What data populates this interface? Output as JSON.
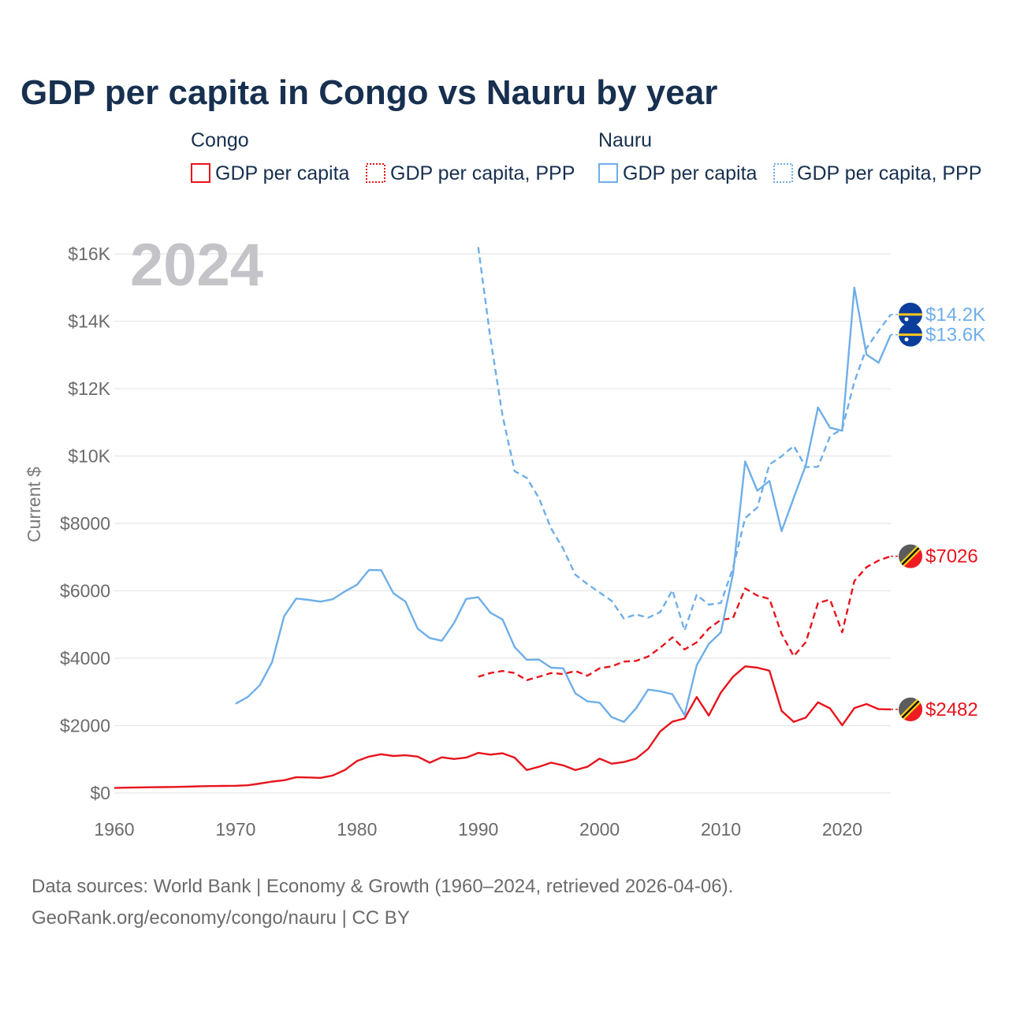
{
  "title": "GDP per capita in Congo vs Nauru by year",
  "year_label": "2024",
  "legend": {
    "congo": {
      "group": "Congo",
      "gdp": "GDP per capita",
      "ppp": "GDP per capita, PPP"
    },
    "nauru": {
      "group": "Nauru",
      "gdp": "GDP per capita",
      "ppp": "GDP per capita, PPP"
    }
  },
  "colors": {
    "congo": "#e8141c",
    "nauru": "#6eaee9",
    "grid": "#e6e6e6",
    "title": "#17304f"
  },
  "source": {
    "line1": "Data sources: World Bank | Economy & Growth (1960–2024, retrieved 2026-04-06).",
    "line2": "GeoRank.org/economy/congo/nauru | CC BY"
  },
  "chart_data": {
    "type": "line",
    "ylabel": "Current $",
    "xlim": [
      1960,
      2024
    ],
    "ylim": [
      0,
      16000
    ],
    "x_ticks": [
      1960,
      1970,
      1980,
      1990,
      2000,
      2010,
      2020
    ],
    "x_tick_labels": [
      "1960",
      "1970",
      "1980",
      "1990",
      "2000",
      "2010",
      "2020"
    ],
    "y_ticks": [
      0,
      2000,
      4000,
      6000,
      8000,
      10000,
      12000,
      14000,
      16000
    ],
    "y_tick_labels": [
      "$0",
      "$2000",
      "$4000",
      "$6000",
      "$8000",
      "$10K",
      "$12K",
      "$14K",
      "$16K"
    ],
    "series": [
      {
        "name": "Congo GDP per capita",
        "country": "congo",
        "dash": false,
        "end_label": "$2482",
        "x": [
          1960,
          1961,
          1962,
          1963,
          1964,
          1965,
          1966,
          1967,
          1968,
          1969,
          1970,
          1971,
          1972,
          1973,
          1974,
          1975,
          1976,
          1977,
          1978,
          1979,
          1980,
          1981,
          1982,
          1983,
          1984,
          1985,
          1986,
          1987,
          1988,
          1989,
          1990,
          1991,
          1992,
          1993,
          1994,
          1995,
          1996,
          1997,
          1998,
          1999,
          2000,
          2001,
          2002,
          2003,
          2004,
          2005,
          2006,
          2007,
          2008,
          2009,
          2010,
          2011,
          2012,
          2013,
          2014,
          2015,
          2016,
          2017,
          2018,
          2019,
          2020,
          2021,
          2022,
          2023,
          2024
        ],
        "y": [
          150,
          160,
          165,
          170,
          175,
          180,
          190,
          200,
          205,
          210,
          215,
          230,
          280,
          340,
          380,
          470,
          460,
          450,
          520,
          680,
          950,
          1080,
          1150,
          1100,
          1120,
          1080,
          900,
          1060,
          1010,
          1050,
          1190,
          1140,
          1180,
          1050,
          680,
          780,
          900,
          820,
          680,
          780,
          1020,
          870,
          920,
          1020,
          1310,
          1830,
          2120,
          2210,
          2850,
          2300,
          2980,
          3450,
          3760,
          3720,
          3630,
          2440,
          2110,
          2240,
          2690,
          2510,
          2010,
          2520,
          2640,
          2490,
          2482
        ]
      },
      {
        "name": "Congo GDP per capita, PPP",
        "country": "congo",
        "dash": true,
        "end_label": "$7026",
        "x": [
          1990,
          1991,
          1992,
          1993,
          1994,
          1995,
          1996,
          1997,
          1998,
          1999,
          2000,
          2001,
          2002,
          2003,
          2004,
          2005,
          2006,
          2007,
          2008,
          2009,
          2010,
          2011,
          2012,
          2013,
          2014,
          2015,
          2016,
          2017,
          2018,
          2019,
          2020,
          2021,
          2022,
          2023,
          2024
        ],
        "y": [
          3450,
          3560,
          3620,
          3560,
          3350,
          3450,
          3560,
          3530,
          3620,
          3480,
          3700,
          3760,
          3900,
          3920,
          4050,
          4310,
          4620,
          4260,
          4470,
          4880,
          5140,
          5190,
          6070,
          5860,
          5760,
          4720,
          4060,
          4480,
          5640,
          5740,
          4770,
          6290,
          6700,
          6900,
          7026
        ]
      },
      {
        "name": "Nauru GDP per capita",
        "country": "nauru",
        "dash": false,
        "end_label": "$13.6K",
        "x": [
          1970,
          1971,
          1972,
          1973,
          1974,
          1975,
          1976,
          1977,
          1978,
          1979,
          1980,
          1981,
          1982,
          1983,
          1984,
          1985,
          1986,
          1987,
          1988,
          1989,
          1990,
          1991,
          1992,
          1993,
          1994,
          1995,
          1996,
          1997,
          1998,
          1999,
          2000,
          2001,
          2002,
          2003,
          2004,
          2005,
          2006,
          2007,
          2008,
          2009,
          2010,
          2011,
          2012,
          2013,
          2014,
          2015,
          2016,
          2017,
          2018,
          2019,
          2020,
          2021,
          2022,
          2023,
          2024
        ],
        "y": [
          2650,
          2850,
          3200,
          3880,
          5250,
          5770,
          5730,
          5680,
          5750,
          5980,
          6180,
          6620,
          6610,
          5930,
          5680,
          4880,
          4600,
          4520,
          5040,
          5760,
          5810,
          5350,
          5150,
          4330,
          3950,
          3960,
          3720,
          3700,
          2960,
          2720,
          2680,
          2250,
          2110,
          2510,
          3070,
          3020,
          2930,
          2310,
          3790,
          4420,
          4770,
          6510,
          9840,
          8970,
          9260,
          7770,
          8760,
          9730,
          11440,
          10840,
          10750,
          15000,
          13010,
          12770,
          13600
        ]
      },
      {
        "name": "Nauru GDP per capita, PPP",
        "country": "nauru",
        "dash": true,
        "end_label": "$14.2K",
        "x": [
          1990,
          1991,
          1992,
          1993,
          1994,
          1995,
          1996,
          1997,
          1998,
          1999,
          2000,
          2001,
          2002,
          2003,
          2004,
          2005,
          2006,
          2007,
          2008,
          2009,
          2010,
          2011,
          2012,
          2013,
          2014,
          2015,
          2016,
          2017,
          2018,
          2019,
          2020,
          2021,
          2022,
          2023,
          2024
        ],
        "y": [
          16200,
          13500,
          11200,
          9550,
          9350,
          8750,
          7850,
          7250,
          6480,
          6200,
          5950,
          5700,
          5180,
          5300,
          5200,
          5370,
          6020,
          4820,
          5880,
          5590,
          5640,
          6680,
          8160,
          8470,
          9750,
          9990,
          10300,
          9670,
          9680,
          10590,
          10800,
          12200,
          13200,
          13720,
          14200
        ]
      }
    ]
  }
}
